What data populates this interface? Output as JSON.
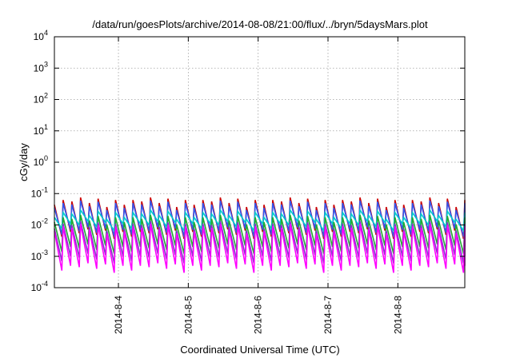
{
  "chart_data": {
    "type": "line",
    "title": "/data/run/goesPlots/archive/2014-08-08/21:00/flux/../bryn/5daysMars.plot",
    "xlabel": "Coordinated Universal Time (UTC)",
    "ylabel": "cGy/day",
    "yscale": "log",
    "ylim": [
      0.0001,
      10000
    ],
    "xlim": [
      "2014-08-03 02:00",
      "2014-08-08 23:00"
    ],
    "grid": true,
    "y_ticks": [
      {
        "base": "10",
        "exp": "-4"
      },
      {
        "base": "10",
        "exp": "-3"
      },
      {
        "base": "10",
        "exp": "-2"
      },
      {
        "base": "10",
        "exp": "-1"
      },
      {
        "base": "10",
        "exp": "0"
      },
      {
        "base": "10",
        "exp": "1"
      },
      {
        "base": "10",
        "exp": "2"
      },
      {
        "base": "10",
        "exp": "3"
      },
      {
        "base": "10",
        "exp": "4"
      }
    ],
    "x_ticks": [
      "2014-8-4",
      "2014-8-5",
      "2014-8-6",
      "2014-8-7",
      "2014-8-8"
    ],
    "sawtooth_period_hours": 3,
    "spike_amplitude_pattern": [
      0.035,
      0.05,
      0.045,
      0.06,
      0.04,
      0.055,
      0.03,
      0.05
    ],
    "series": [
      {
        "color": "#cc0000",
        "peak_factor": 1.25,
        "trough_factor": 0.12
      },
      {
        "color": "#3355ee",
        "peak_factor": 1.0,
        "trough_factor": 0.14
      },
      {
        "color": "#00cccc",
        "peak_factor": 0.5,
        "trough_factor": 0.22
      },
      {
        "color": "#22aa33",
        "peak_factor": 0.35,
        "trough_factor": 0.04
      },
      {
        "color": "#8833cc",
        "peak_factor": 0.22,
        "trough_factor": 0.02
      },
      {
        "color": "#ff00ff",
        "peak_factor": 0.18,
        "trough_factor": 0.01
      }
    ]
  }
}
